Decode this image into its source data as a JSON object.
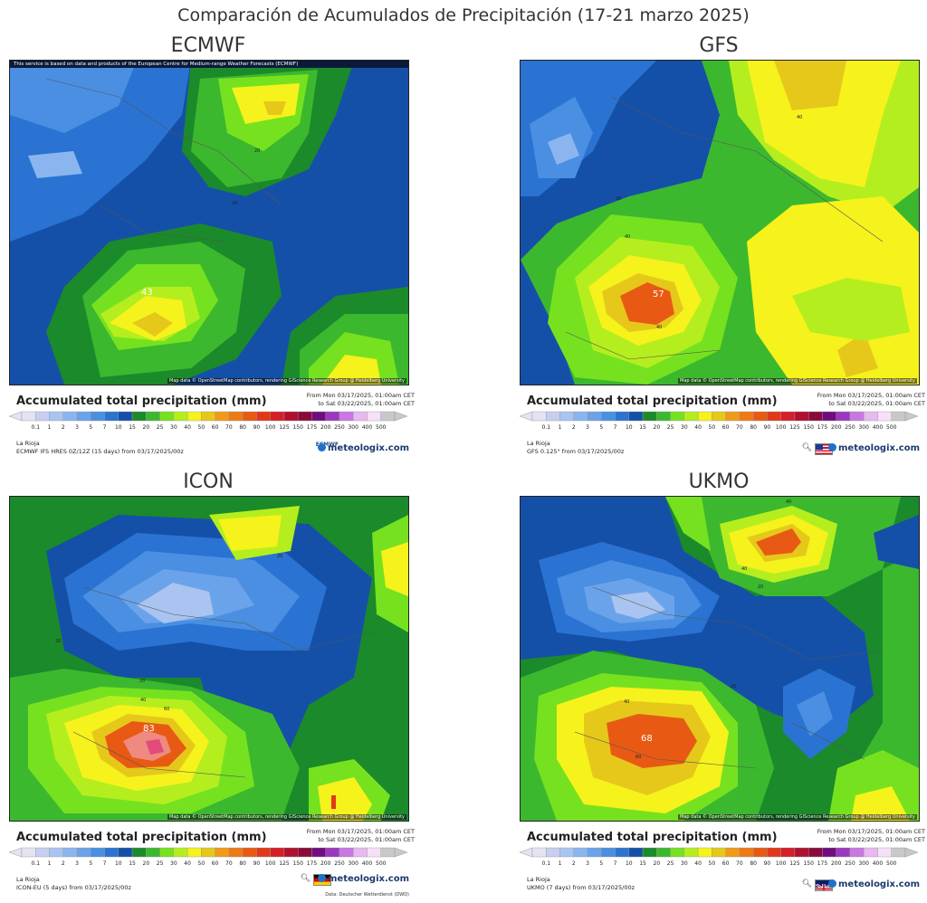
{
  "title": "Comparación de Acumulados de Precipitación (17-21 marzo 2025)",
  "legend_title": "Accumulated total precipitation (mm)",
  "date_from": "From Mon 03/17/2025, 01:00am CET",
  "date_to": "to Sat 03/22/2025, 01:00am CET",
  "location": "La Rioja",
  "brand": "meteologix.com",
  "map_attribution": "Map data © OpenStreetMap contributors, rendering GIScience Research Group @ Heidelberg University",
  "ecmwf_notice": "This service is based on data and products of the European Centre for Medium-range Weather Forecasts (ECMWF)",
  "dwd_credit": "Data: Deutscher Wetterdienst (DWD)",
  "ecmwf_logo_text": "ECMWF",
  "scale": {
    "ticks": [
      "0.1",
      "1",
      "2",
      "3",
      "5",
      "7",
      "10",
      "15",
      "20",
      "25",
      "30",
      "40",
      "50",
      "60",
      "70",
      "80",
      "90",
      "100",
      "125",
      "150",
      "175",
      "200",
      "250",
      "300",
      "400",
      "500"
    ],
    "colors": [
      "#e3e3f2",
      "#c6cff0",
      "#a9c4f0",
      "#8bb5ee",
      "#6ba3ea",
      "#4a8fe2",
      "#2a73d2",
      "#1550a8",
      "#1b8a2b",
      "#3cb82e",
      "#76e21f",
      "#b5ee1e",
      "#f6f21c",
      "#e6c81a",
      "#f29a18",
      "#ee7a16",
      "#e85a14",
      "#e2381a",
      "#d41e28",
      "#b0102e",
      "#8a0a3a",
      "#700d7e",
      "#9c38c0",
      "#c878e2",
      "#e8b8f0",
      "#f6e0f8",
      "#c8c8c8"
    ]
  },
  "panels": [
    {
      "model": "ECMWF",
      "source": "ECMWF IFS HRES 0Z/12Z (15 days) from  03/17/2025/00z",
      "max_label": "43",
      "contours": [
        "20",
        "20"
      ]
    },
    {
      "model": "GFS",
      "source": "GFS 0.125° from  03/17/2025/00z",
      "max_label": "57",
      "contours": [
        "40",
        "20",
        "40",
        "40"
      ]
    },
    {
      "model": "ICON",
      "source": "ICON-EU (5 days) from  03/17/2025/00z",
      "max_label": "83",
      "contours": [
        "20",
        "20",
        "20",
        "40",
        "60"
      ]
    },
    {
      "model": "UKMO",
      "source": "UKMO (7 days) from  03/17/2025/00z",
      "max_label": "68",
      "contours": [
        "40",
        "40",
        "20",
        "20",
        "40",
        "60"
      ]
    }
  ]
}
